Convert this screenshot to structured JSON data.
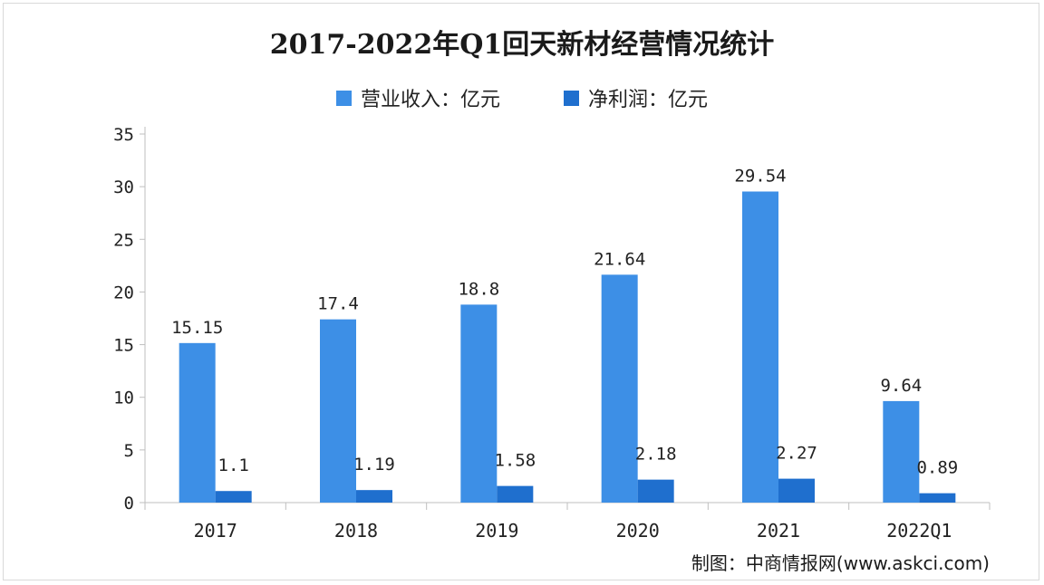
{
  "header": {
    "title": "2017-2022年Q1回天新材经营情况统计"
  },
  "legend": {
    "items": [
      {
        "label": "营业收入：亿元",
        "color": "#3d8fe6"
      },
      {
        "label": "净利润：亿元",
        "color": "#1f6fce"
      }
    ]
  },
  "footer": {
    "credit": "制图：中商情报网(www.askci.com)"
  },
  "chart_data": {
    "type": "bar",
    "title": "2017-2022年Q1回天新材经营情况统计",
    "categories": [
      "2017",
      "2018",
      "2019",
      "2020",
      "2021",
      "2022Q1"
    ],
    "series": [
      {
        "name": "营业收入：亿元",
        "values": [
          15.15,
          17.4,
          18.8,
          21.64,
          29.54,
          9.64
        ],
        "labels": [
          "15.15",
          "17.4",
          "18.8",
          "21.64",
          "29.54",
          "9.64"
        ],
        "color": "#3d8fe6"
      },
      {
        "name": "净利润：亿元",
        "values": [
          1.1,
          1.19,
          1.58,
          2.18,
          2.27,
          0.89
        ],
        "labels": [
          "1.1",
          "1.19",
          "1.58",
          "2.18",
          "2.27",
          "0.89"
        ],
        "color": "#1f6fce"
      }
    ],
    "ylim": [
      0,
      35
    ],
    "yticks": [
      "0",
      "5",
      "10",
      "15",
      "20",
      "25",
      "30",
      "35"
    ],
    "legend_position": "top-center",
    "grid": false
  }
}
